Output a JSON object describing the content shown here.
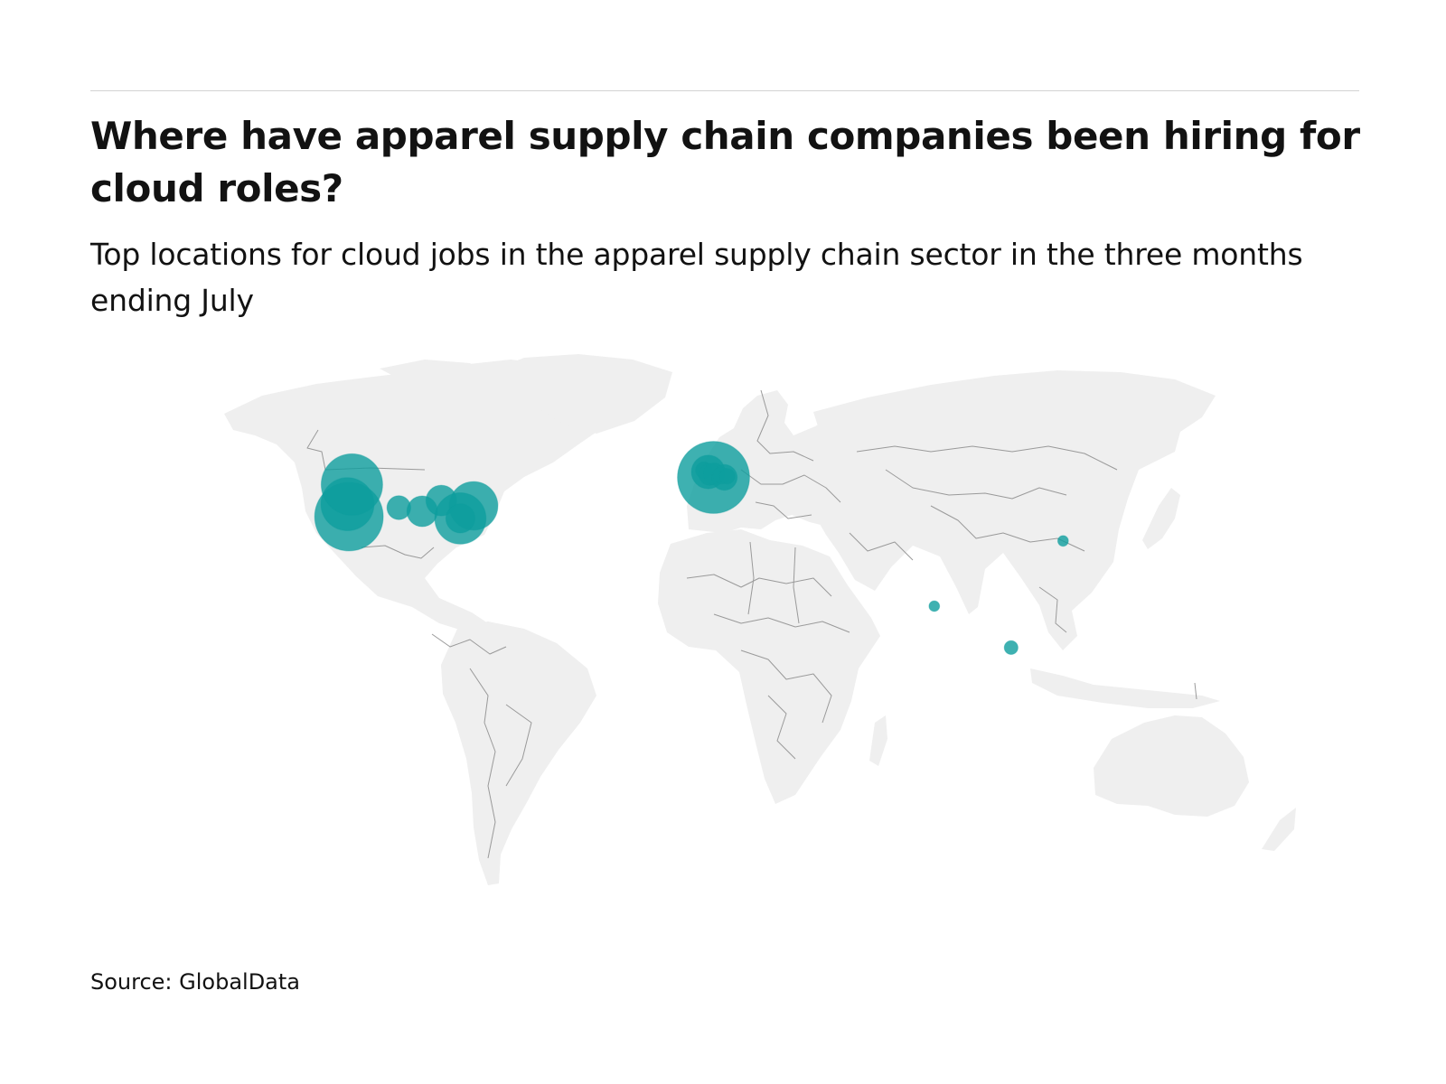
{
  "header": {
    "title": "Where have apparel supply chain companies been hiring for cloud roles?",
    "subtitle": "Top locations for cloud jobs in the apparel supply chain sector in the three months ending July"
  },
  "footer": {
    "source": "Source: GlobalData"
  },
  "colors": {
    "background": "#ffffff",
    "land": "#efefef",
    "border": "#9a9a9a",
    "bubble": "#0e9e9e",
    "rule": "#d3d3d3"
  },
  "chart_data": {
    "type": "bubble-map",
    "base_map": "world",
    "locations": [
      {
        "lat": 38.0,
        "lon": -122.0,
        "size": 5
      },
      {
        "lat": 41.5,
        "lon": -122.5,
        "size": 3
      },
      {
        "lat": 47.0,
        "lon": -121.0,
        "size": 4
      },
      {
        "lat": 40.5,
        "lon": -105.0,
        "size": 0.6
      },
      {
        "lat": 39.5,
        "lon": -97.0,
        "size": 1
      },
      {
        "lat": 42.5,
        "lon": -90.5,
        "size": 1
      },
      {
        "lat": 41.0,
        "lon": -79.5,
        "size": 2.5
      },
      {
        "lat": 37.5,
        "lon": -84.0,
        "size": 2.8
      },
      {
        "lat": 37.5,
        "lon": -84.0,
        "size": 0.9
      },
      {
        "lat": 49.0,
        "lon": 2.3,
        "size": 5.5
      },
      {
        "lat": 51.0,
        "lon": -1.0,
        "size": 0.3
      },
      {
        "lat": 50.5,
        "lon": 0.5,
        "size": 1.2
      },
      {
        "lat": 49.8,
        "lon": 1.0,
        "size": 0.5
      },
      {
        "lat": 50.0,
        "lon": 2.5,
        "size": 0.5
      },
      {
        "lat": 49.5,
        "lon": 5.0,
        "size": 0.3
      },
      {
        "lat": 49.0,
        "lon": 6.0,
        "size": 0.7
      },
      {
        "lat": 49.3,
        "lon": 7.0,
        "size": 0.25
      },
      {
        "lat": 31.2,
        "lon": 121.5,
        "size": 0.12
      },
      {
        "lat": 12.9,
        "lon": 77.6,
        "size": 0.12
      },
      {
        "lat": 1.3,
        "lon": 103.8,
        "size": 0.2
      }
    ]
  }
}
